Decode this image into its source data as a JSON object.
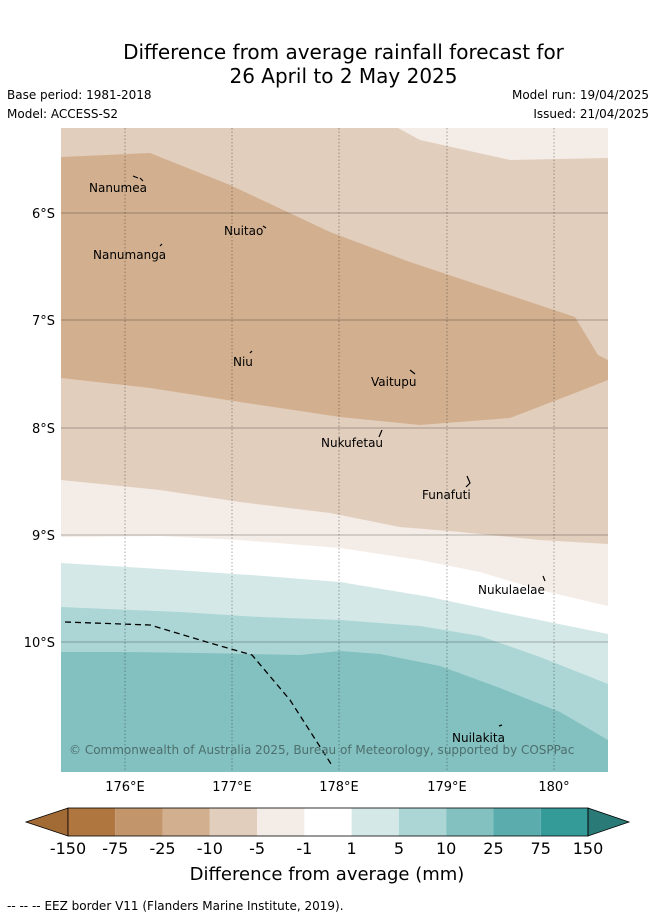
{
  "header": {
    "title_line1": "Difference from average rainfall forecast for",
    "title_line2": "26 April to 2 May 2025",
    "base_period": "Base period: 1981-2018",
    "model": "Model: ACCESS-S2",
    "model_run": "Model run: 19/04/2025",
    "issued": "Issued: 21/04/2025"
  },
  "map": {
    "lat_labels": [
      "6°S",
      "7°S",
      "8°S",
      "9°S",
      "10°S"
    ],
    "lon_labels": [
      "176°E",
      "177°E",
      "178°E",
      "179°E",
      "180°"
    ],
    "places": [
      {
        "name": "Nanumea"
      },
      {
        "name": "Nuitao"
      },
      {
        "name": "Nanumanga"
      },
      {
        "name": "Niu"
      },
      {
        "name": "Vaitupu"
      },
      {
        "name": "Nukufetau"
      },
      {
        "name": "Funafuti"
      },
      {
        "name": "Nukulaelae"
      },
      {
        "name": "Nuilakita"
      }
    ],
    "copyright": "© Commonwealth of Australia 2025, Bureau of Meteorology, supported by COSPPac"
  },
  "colorbar": {
    "title": "Difference from average (mm)",
    "ticks": [
      "-150",
      "-75",
      "-25",
      "-10",
      "-5",
      "-1",
      "1",
      "5",
      "10",
      "25",
      "75",
      "150"
    ],
    "colors": [
      "#a26a35",
      "#b07640",
      "#c2956a",
      "#d2b08f",
      "#e2cebd",
      "#f4ece6",
      "#ffffff",
      "#d4e8e7",
      "#abd6d5",
      "#83c1c0",
      "#5aadac",
      "#359b99",
      "#2a7a78"
    ]
  },
  "footer": {
    "legend_text": "EEZ border V11 (Flanders Marine Institute, 2019)."
  }
}
